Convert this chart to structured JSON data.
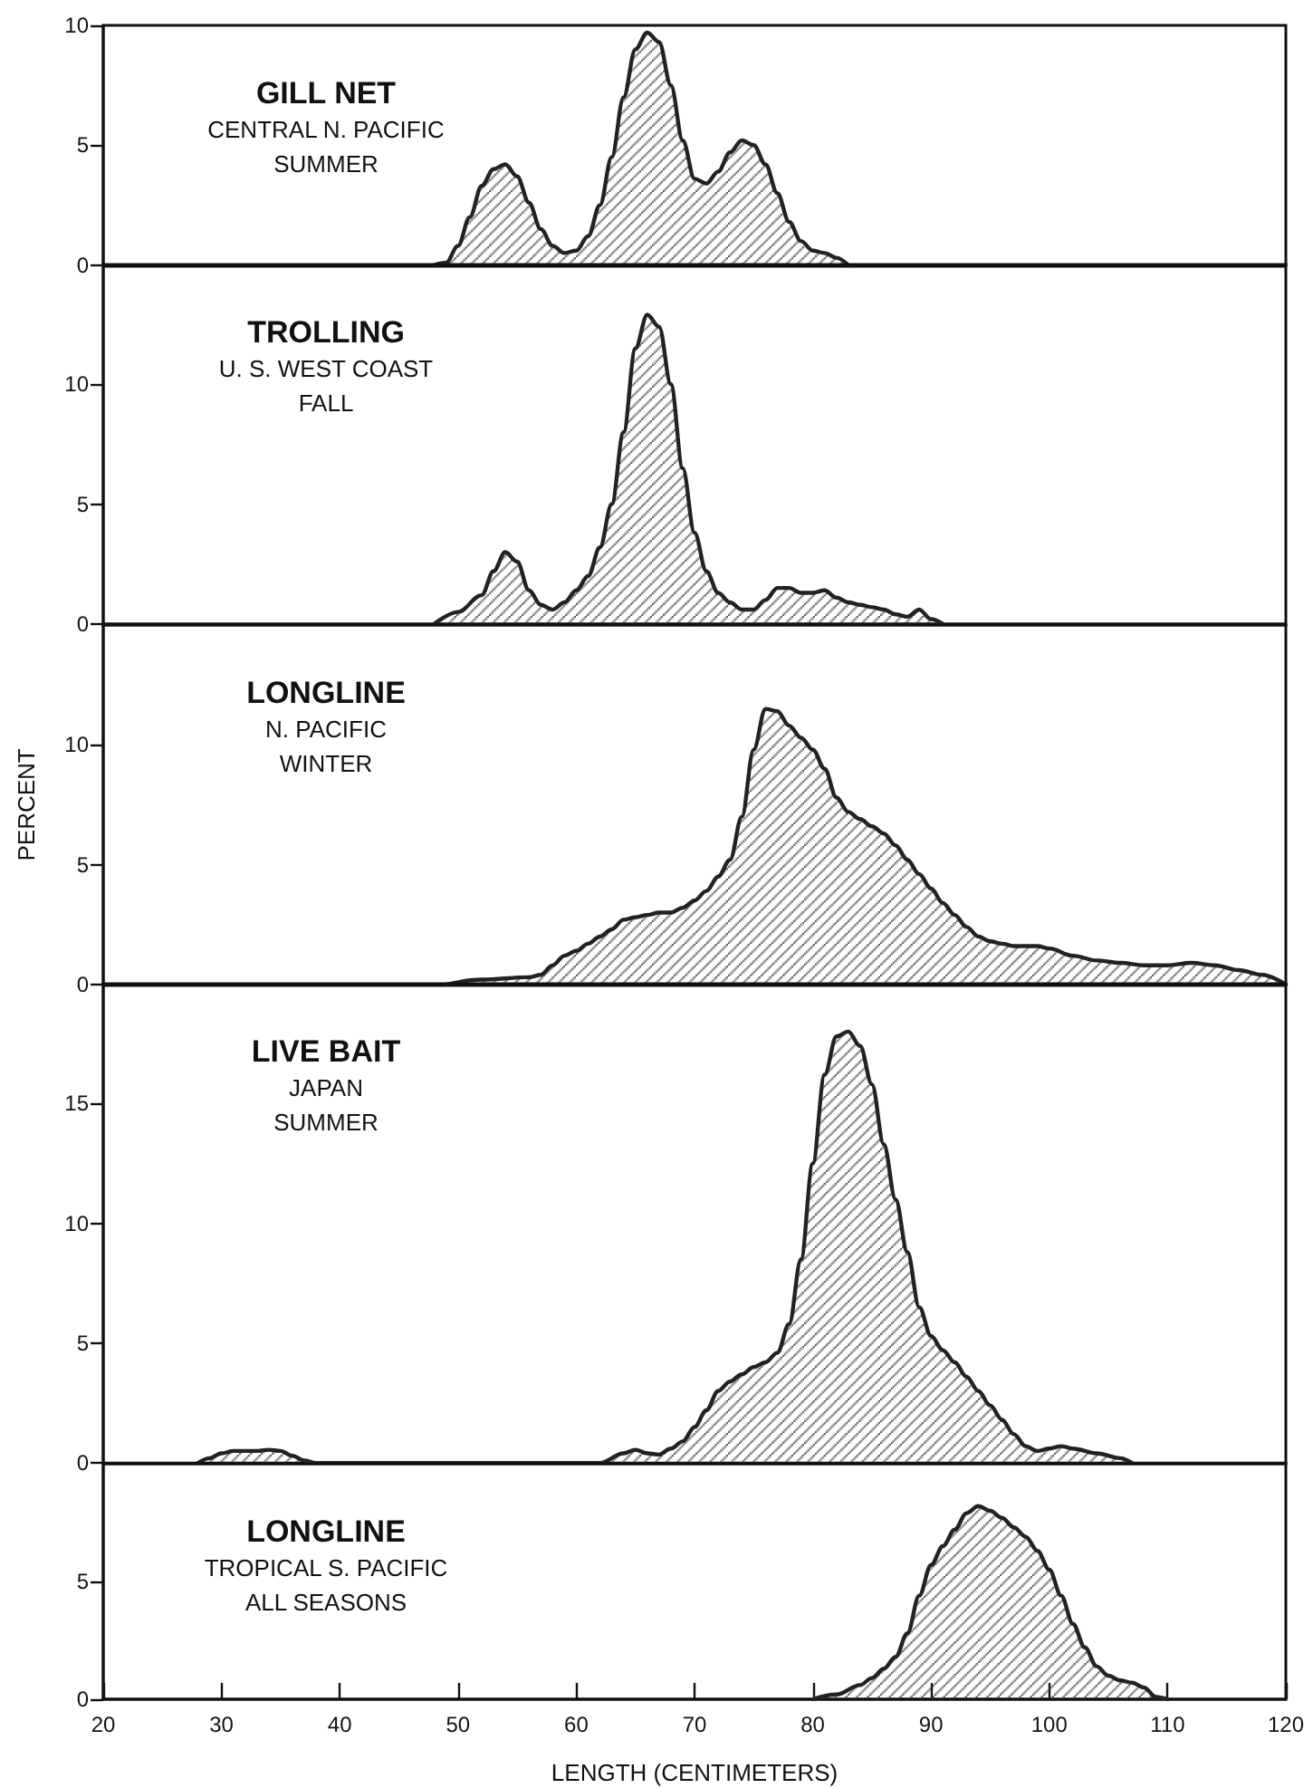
{
  "chart_data": [
    {
      "type": "area",
      "title": "GILL NET",
      "subtitle": "CENTRAL N. PACIFIC",
      "annotations": [
        "SUMMER"
      ],
      "color": "#222222",
      "marker": "none",
      "tick_labels": "y",
      "xlim": [
        20,
        120
      ],
      "ylim": [
        0,
        10
      ],
      "yticks": [
        0,
        5,
        10
      ],
      "x": [
        48,
        49,
        50,
        51,
        52,
        53,
        54,
        55,
        56,
        57,
        58,
        59,
        60,
        61,
        62,
        63,
        64,
        65,
        66,
        67,
        68,
        69,
        70,
        71,
        72,
        73,
        74,
        75,
        76,
        77,
        78,
        79,
        80,
        81,
        82,
        83
      ],
      "values": [
        0,
        0.1,
        0.8,
        2.0,
        3.3,
        4.0,
        4.2,
        3.7,
        2.6,
        1.5,
        0.8,
        0.5,
        0.6,
        1.2,
        2.5,
        4.5,
        7.0,
        9.0,
        9.7,
        9.3,
        7.5,
        5.2,
        3.6,
        3.4,
        3.9,
        4.7,
        5.2,
        5.0,
        4.2,
        3.0,
        1.8,
        1.0,
        0.6,
        0.5,
        0.3,
        0
      ]
    },
    {
      "type": "area",
      "title": "TROLLING",
      "subtitle": "U. S. WEST COAST",
      "annotations": [
        "FALL"
      ],
      "color": "#222222",
      "marker": "none",
      "tick_labels": "y",
      "xlim": [
        20,
        120
      ],
      "ylim": [
        0,
        15
      ],
      "yticks": [
        0,
        5,
        10
      ],
      "x": [
        48,
        50,
        52,
        53,
        54,
        55,
        56,
        57,
        58,
        59,
        60,
        61,
        62,
        63,
        64,
        65,
        66,
        67,
        68,
        69,
        70,
        71,
        72,
        73,
        74,
        75,
        76,
        77,
        78,
        79,
        80,
        81,
        82,
        83,
        84,
        85,
        86,
        87,
        88,
        89,
        90,
        91
      ],
      "values": [
        0,
        0.5,
        1.2,
        2.2,
        3.0,
        2.6,
        1.4,
        0.8,
        0.6,
        0.9,
        1.4,
        2.0,
        3.2,
        5.0,
        8.0,
        11.5,
        12.9,
        12.4,
        10.0,
        6.5,
        3.8,
        2.2,
        1.3,
        0.9,
        0.6,
        0.6,
        1.0,
        1.5,
        1.5,
        1.3,
        1.3,
        1.4,
        1.1,
        0.9,
        0.8,
        0.7,
        0.6,
        0.4,
        0.3,
        0.6,
        0.2,
        0
      ]
    },
    {
      "type": "area",
      "title": "LONGLINE",
      "subtitle": "N. PACIFIC",
      "annotations": [
        "WINTER"
      ],
      "ylabel": "PERCENT",
      "color": "#222222",
      "marker": "none",
      "tick_labels": "y",
      "xlim": [
        20,
        120
      ],
      "ylim": [
        0,
        15
      ],
      "yticks": [
        0,
        5,
        10
      ],
      "x": [
        49,
        52,
        56,
        57,
        58,
        59,
        60,
        61,
        62,
        63,
        64,
        65,
        66,
        67,
        68,
        69,
        70,
        71,
        72,
        73,
        74,
        75,
        76,
        77,
        78,
        79,
        80,
        81,
        82,
        83,
        84,
        85,
        86,
        87,
        88,
        89,
        90,
        91,
        92,
        93,
        94,
        95,
        96,
        97,
        98,
        99,
        100,
        102,
        104,
        106,
        108,
        110,
        112,
        114,
        116,
        118,
        120
      ],
      "values": [
        0,
        0.2,
        0.3,
        0.4,
        0.8,
        1.2,
        1.4,
        1.7,
        2.0,
        2.3,
        2.7,
        2.8,
        2.9,
        3.0,
        3.0,
        3.2,
        3.5,
        3.9,
        4.5,
        5.2,
        7.0,
        9.8,
        11.5,
        11.4,
        10.8,
        10.3,
        9.8,
        9.0,
        7.8,
        7.2,
        6.9,
        6.6,
        6.3,
        5.8,
        5.2,
        4.6,
        4.0,
        3.4,
        2.9,
        2.4,
        2.0,
        1.8,
        1.7,
        1.6,
        1.6,
        1.6,
        1.5,
        1.2,
        1.0,
        0.9,
        0.8,
        0.8,
        0.9,
        0.8,
        0.6,
        0.4,
        0
      ]
    },
    {
      "type": "area",
      "title": "LIVE BAIT",
      "subtitle": "JAPAN",
      "annotations": [
        "SUMMER"
      ],
      "color": "#222222",
      "marker": "none",
      "tick_labels": "y",
      "xlim": [
        20,
        120
      ],
      "ylim": [
        0,
        20
      ],
      "yticks": [
        0,
        5,
        10,
        15
      ],
      "x": [
        28,
        29,
        30,
        31,
        32,
        33,
        34,
        35,
        36,
        37,
        38,
        62,
        64,
        65,
        66,
        67,
        68,
        69,
        70,
        71,
        72,
        73,
        74,
        75,
        76,
        77,
        78,
        79,
        80,
        81,
        82,
        83,
        84,
        85,
        86,
        87,
        88,
        89,
        90,
        91,
        92,
        93,
        94,
        95,
        96,
        97,
        98,
        99,
        100,
        101,
        102,
        104,
        106,
        107
      ],
      "values": [
        0,
        0.2,
        0.4,
        0.5,
        0.5,
        0.5,
        0.55,
        0.5,
        0.3,
        0.1,
        0,
        0,
        0.4,
        0.55,
        0.4,
        0.35,
        0.6,
        0.9,
        1.5,
        2.2,
        3.0,
        3.4,
        3.7,
        4.0,
        4.2,
        4.6,
        5.8,
        8.5,
        12.5,
        16.2,
        17.8,
        18.0,
        17.4,
        15.8,
        13.3,
        11.0,
        8.8,
        6.5,
        5.3,
        4.7,
        4.2,
        3.6,
        3.0,
        2.4,
        1.8,
        1.2,
        0.7,
        0.5,
        0.6,
        0.7,
        0.6,
        0.4,
        0.2,
        0
      ]
    },
    {
      "type": "area",
      "title": "LONGLINE",
      "subtitle": "TROPICAL S. PACIFIC",
      "annotations": [
        "ALL SEASONS"
      ],
      "xlabel": "LENGTH (CENTIMETERS)",
      "color": "#222222",
      "marker": "none",
      "xlim": [
        20,
        120
      ],
      "xticks": [
        20,
        30,
        40,
        50,
        60,
        70,
        80,
        90,
        100,
        110,
        120
      ],
      "ylim": [
        0,
        10
      ],
      "yticks": [
        0,
        5
      ],
      "x": [
        80,
        82,
        84,
        85,
        86,
        87,
        88,
        89,
        90,
        91,
        92,
        93,
        94,
        95,
        96,
        97,
        98,
        99,
        100,
        101,
        102,
        103,
        104,
        105,
        106,
        107,
        108,
        109,
        110
      ],
      "values": [
        0,
        0.2,
        0.6,
        0.9,
        1.3,
        1.8,
        2.8,
        4.4,
        5.7,
        6.5,
        7.2,
        7.9,
        8.2,
        8.0,
        7.7,
        7.3,
        6.9,
        6.3,
        5.5,
        4.4,
        3.2,
        2.2,
        1.4,
        1.0,
        0.8,
        0.7,
        0.5,
        0.1,
        0
      ]
    }
  ]
}
